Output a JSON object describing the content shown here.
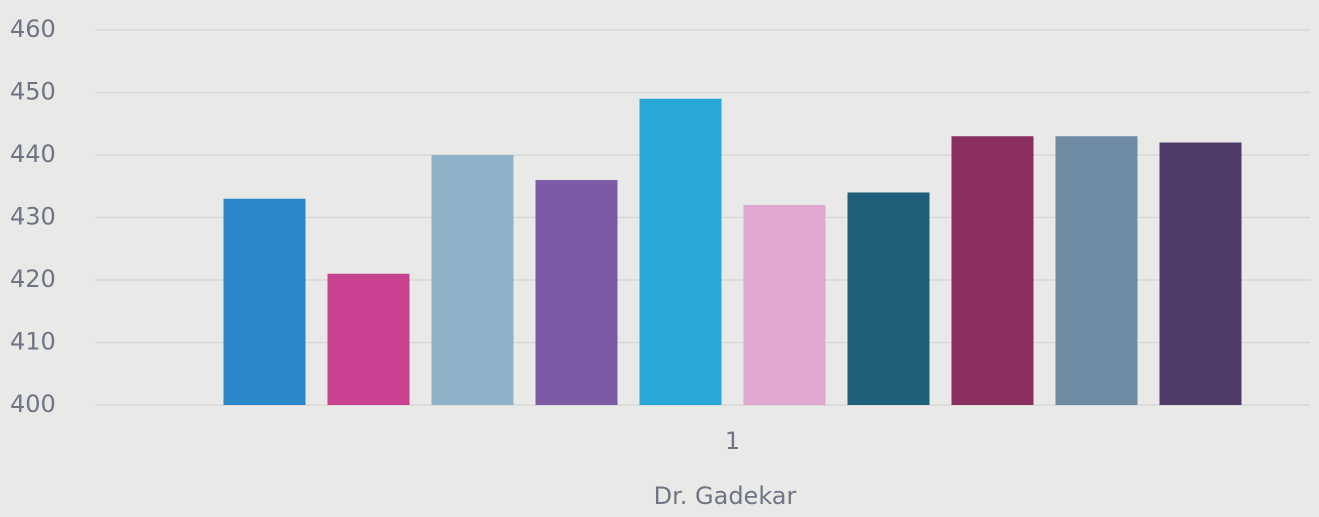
{
  "chart_data": {
    "type": "bar",
    "categories": [
      "1"
    ],
    "xlabel": "Dr. Gadekar",
    "series": [
      {
        "color": "#2a86c8",
        "values": [
          433
        ]
      },
      {
        "color": "#c8418e",
        "values": [
          421
        ]
      },
      {
        "color": "#8fb0c9",
        "values": [
          440
        ]
      },
      {
        "color": "#7b5aa6",
        "values": [
          436
        ]
      },
      {
        "color": "#29a8d8",
        "values": [
          449
        ]
      },
      {
        "color": "#e0a8d0",
        "values": [
          432
        ]
      },
      {
        "color": "#1e5f7a",
        "values": [
          434
        ]
      },
      {
        "color": "#8a2f5f",
        "values": [
          443
        ]
      },
      {
        "color": "#6f8aa3",
        "values": [
          443
        ]
      },
      {
        "color": "#4e3b68",
        "values": [
          442
        ]
      }
    ],
    "ylim": [
      400,
      460
    ],
    "yticks": [
      400,
      410,
      420,
      430,
      440,
      450,
      460
    ],
    "grid": true
  }
}
